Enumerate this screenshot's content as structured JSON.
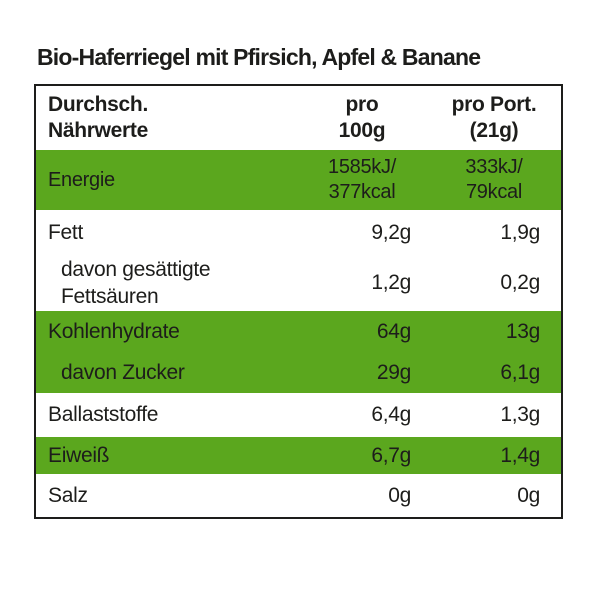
{
  "title": "Bio-Haferriegel mit Pfirsich, Apfel & Banane",
  "colors": {
    "row_highlight_green": "#5BA71E",
    "border": "#1D1D1B",
    "text": "#1D1D1B"
  },
  "table": {
    "header": {
      "col1": "Durchsch.\nNährwerte",
      "col2": "pro\n100g",
      "col3": "pro Port.\n(21g)"
    },
    "rows": [
      {
        "label": "Energie",
        "per100g": "1585kJ/\n377kcal",
        "perPortion": "333kJ/\n79kcal",
        "highlighted": true,
        "indented": false
      },
      {
        "label": "Fett",
        "per100g": "9,2g",
        "perPortion": "1,9g",
        "highlighted": false,
        "indented": false
      },
      {
        "label": "davon gesättigte\nFettsäuren",
        "per100g": "1,2g",
        "perPortion": "0,2g",
        "highlighted": false,
        "indented": true
      },
      {
        "label": "Kohlenhydrate",
        "per100g": "64g",
        "perPortion": "13g",
        "highlighted": true,
        "indented": false
      },
      {
        "label": "davon Zucker",
        "per100g": "29g",
        "perPortion": "6,1g",
        "highlighted": true,
        "indented": true
      },
      {
        "label": "Ballaststoffe",
        "per100g": "6,4g",
        "perPortion": "1,3g",
        "highlighted": false,
        "indented": false
      },
      {
        "label": "Eiweiß",
        "per100g": "6,7g",
        "perPortion": "1,4g",
        "highlighted": true,
        "indented": false
      },
      {
        "label": "Salz",
        "per100g": "0g",
        "perPortion": "0g",
        "highlighted": false,
        "indented": false
      }
    ]
  }
}
